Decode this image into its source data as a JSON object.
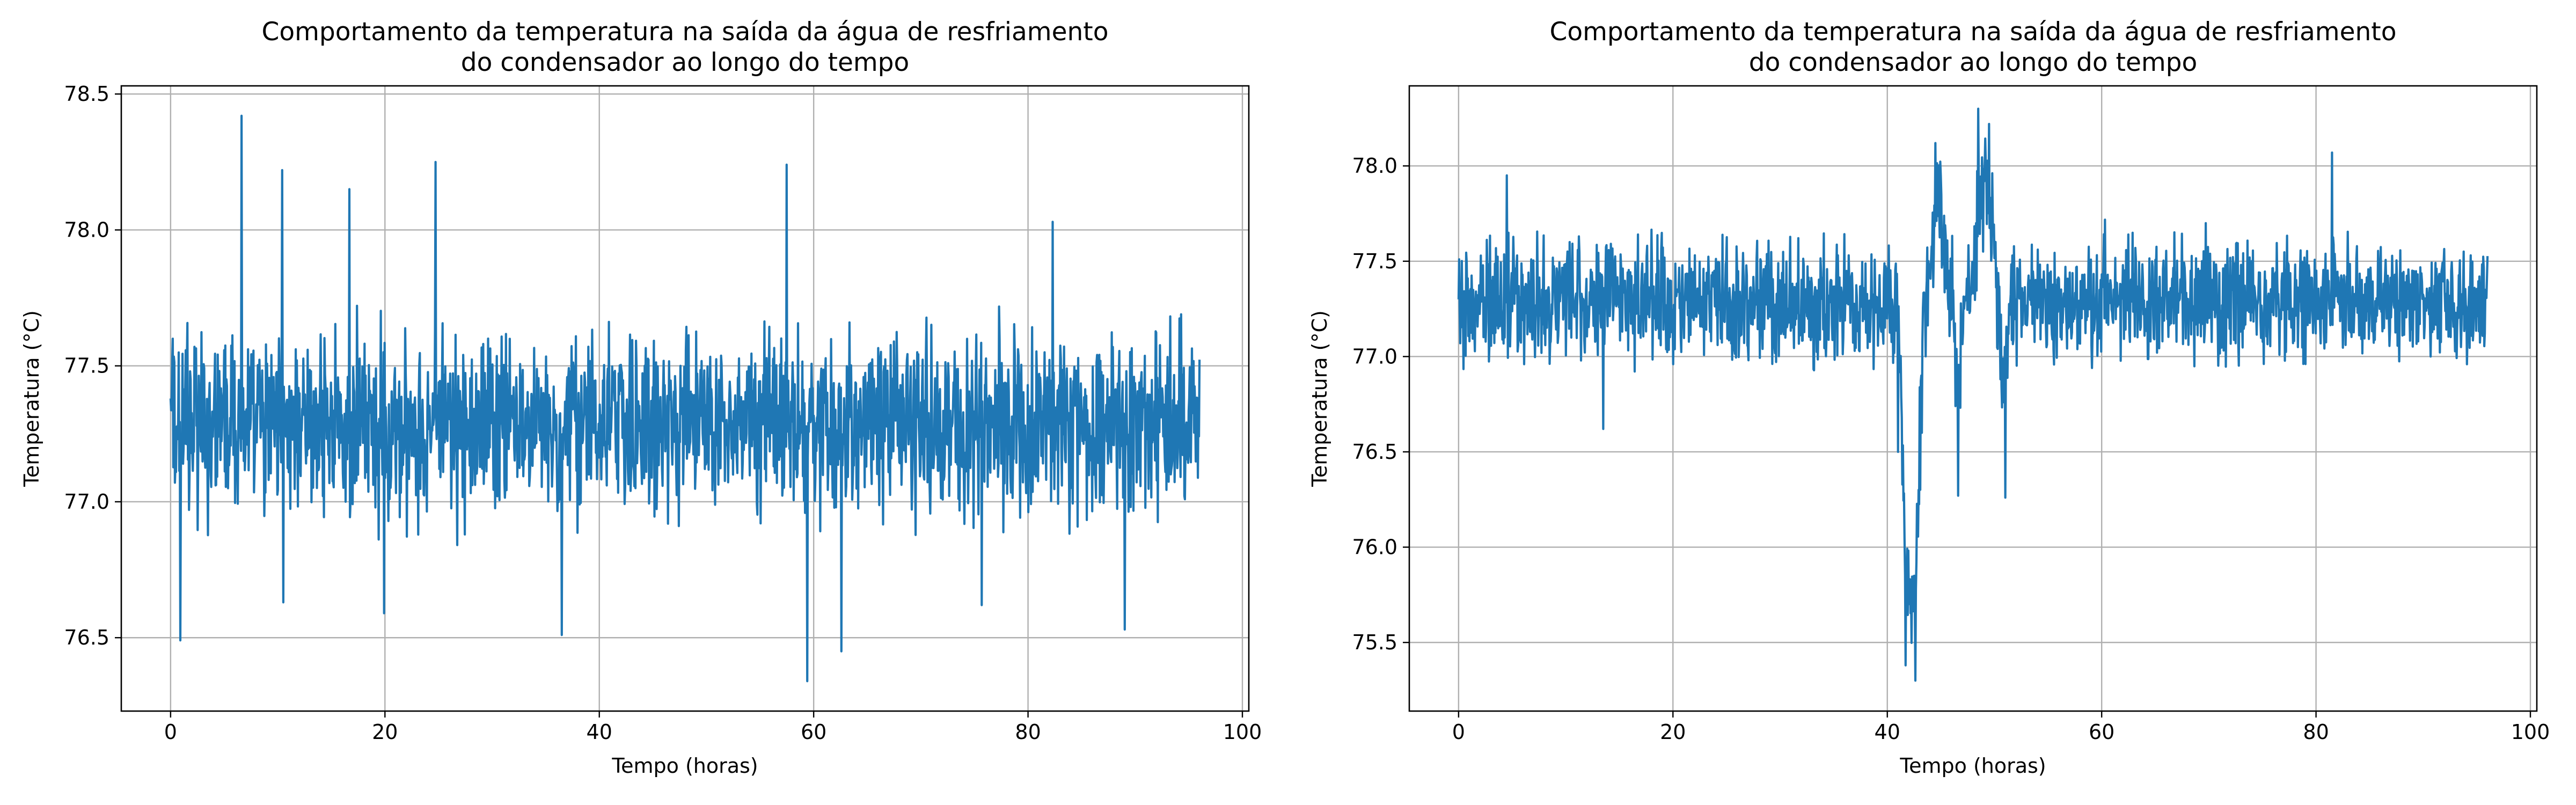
{
  "chart_data": [
    {
      "type": "line",
      "title": [
        "Comportamento da temperatura na saída da água de resfriamento",
        "do condensador ao longo do tempo"
      ],
      "xlabel": "Tempo (horas)",
      "ylabel": "Temperatura (°C)",
      "xlim": [
        -4.6,
        100.6
      ],
      "ylim": [
        76.23,
        78.53
      ],
      "xticks": [
        0,
        20,
        40,
        60,
        80,
        100
      ],
      "yticks": [
        76.5,
        77.0,
        77.5,
        78.0,
        78.5
      ],
      "grid": true,
      "series": [
        {
          "color": "#1f77b4",
          "base": 77.28,
          "noise_amplitude": 0.24,
          "x_range": [
            0,
            96
          ],
          "key_points": [
            {
              "x": 0.0,
              "y": 77.38
            },
            {
              "x": 0.9,
              "y": 76.49
            },
            {
              "x": 6.6,
              "y": 78.42
            },
            {
              "x": 10.4,
              "y": 78.22
            },
            {
              "x": 10.5,
              "y": 76.63
            },
            {
              "x": 16.7,
              "y": 78.15
            },
            {
              "x": 19.9,
              "y": 76.59
            },
            {
              "x": 24.7,
              "y": 78.25
            },
            {
              "x": 36.5,
              "y": 76.51
            },
            {
              "x": 57.5,
              "y": 78.24
            },
            {
              "x": 59.4,
              "y": 76.34
            },
            {
              "x": 62.6,
              "y": 76.45
            },
            {
              "x": 75.7,
              "y": 76.62
            },
            {
              "x": 82.3,
              "y": 78.03
            },
            {
              "x": 89.0,
              "y": 76.53
            },
            {
              "x": 95.8,
              "y": 77.33
            }
          ]
        }
      ]
    },
    {
      "type": "line",
      "title": [
        "Comportamento da temperatura na saída da água de resfriamento",
        "do condensador ao longo do tempo"
      ],
      "xlabel": "Tempo (horas)",
      "ylabel": "Temperatura (°C)",
      "xlim": [
        -4.6,
        100.6
      ],
      "ylim": [
        75.14,
        78.42
      ],
      "xticks": [
        0,
        20,
        40,
        60,
        80,
        100
      ],
      "yticks": [
        75.5,
        76.0,
        76.5,
        77.0,
        77.5,
        78.0
      ],
      "grid": true,
      "series": [
        {
          "color": "#1f77b4",
          "base": 77.3,
          "noise_amplitude": 0.22,
          "x_range": [
            0,
            96
          ],
          "key_points": [
            {
              "x": 0.0,
              "y": 77.3
            },
            {
              "x": 4.5,
              "y": 77.95
            },
            {
              "x": 13.5,
              "y": 76.62
            },
            {
              "x": 40.0,
              "y": 77.2
            },
            {
              "x": 41.0,
              "y": 76.5
            },
            {
              "x": 41.7,
              "y": 75.38
            },
            {
              "x": 42.6,
              "y": 75.3
            },
            {
              "x": 43.2,
              "y": 76.6
            },
            {
              "x": 44.5,
              "y": 78.12
            },
            {
              "x": 46.0,
              "y": 77.2
            },
            {
              "x": 46.6,
              "y": 76.27
            },
            {
              "x": 48.5,
              "y": 78.3
            },
            {
              "x": 49.5,
              "y": 78.22
            },
            {
              "x": 51.0,
              "y": 76.26
            },
            {
              "x": 52.0,
              "y": 77.3
            },
            {
              "x": 81.5,
              "y": 78.07
            },
            {
              "x": 95.8,
              "y": 77.35
            }
          ]
        }
      ]
    }
  ]
}
